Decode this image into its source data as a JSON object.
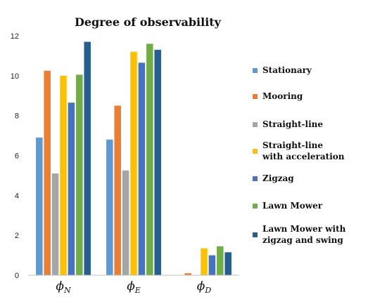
{
  "chart_data": {
    "type": "bar",
    "title": "Degree of observability",
    "xlabel": "",
    "ylabel": "",
    "ylim": [
      0,
      12
    ],
    "yticks": [
      "0",
      "2",
      "4",
      "6",
      "8",
      "10",
      "12"
    ],
    "categories": [
      "ϕN",
      "ϕE",
      "ϕD"
    ],
    "category_labels": [
      {
        "base": "ϕ",
        "sub": "N"
      },
      {
        "base": "ϕ",
        "sub": "E"
      },
      {
        "base": "ϕ",
        "sub": "D"
      }
    ],
    "grid": false,
    "legend_position": "right",
    "series": [
      {
        "name": "Stationary",
        "legend_lines": [
          "Stationary"
        ],
        "color": "#5B9BD5",
        "values": [
          6.9,
          6.8,
          0
        ]
      },
      {
        "name": "Mooring",
        "legend_lines": [
          "Mooring"
        ],
        "color": "#ED7D31",
        "values": [
          10.25,
          8.5,
          0.1
        ]
      },
      {
        "name": "Straight-line",
        "legend_lines": [
          "Straight-line"
        ],
        "color": "#A5A5A5",
        "values": [
          5.1,
          5.25,
          0
        ]
      },
      {
        "name": "Straight-line with acceleration",
        "legend_lines": [
          "Straight-line",
          "with acceleration"
        ],
        "color": "#FFC000",
        "values": [
          10.0,
          11.2,
          1.35
        ]
      },
      {
        "name": "Zigzag",
        "legend_lines": [
          " Zigzag"
        ],
        "color": "#4472C4",
        "values": [
          8.65,
          10.65,
          1.0
        ]
      },
      {
        "name": "Lawn Mower",
        "legend_lines": [
          "Lawn Mower"
        ],
        "color": "#70AD47",
        "values": [
          10.05,
          11.6,
          1.45
        ]
      },
      {
        "name": "Lawn Mower with zigzag and swing",
        "legend_lines": [
          "Lawn Mower with",
          "zigzag and swing"
        ],
        "color": "#255E91",
        "values": [
          11.7,
          11.3,
          1.15
        ]
      }
    ]
  }
}
